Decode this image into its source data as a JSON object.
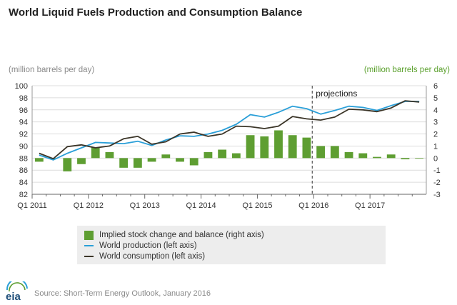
{
  "header": {
    "title": "World Liquid Fuels Production and Consumption Balance",
    "left_unit": "(million barrels per day)",
    "right_unit": "(million barrels per day)"
  },
  "colors": {
    "production": "#2a9fd8",
    "consumption": "#3b3528",
    "bars": "#5e9e32",
    "unit_right": "#5aa02c"
  },
  "chart_data": {
    "type": "bar",
    "title": "World Liquid Fuels Production and Consumption Balance",
    "x_tick_labels": [
      "Q1 2011",
      "Q1 2012",
      "Q1 2013",
      "Q1 2014",
      "Q1 2015",
      "Q1 2016",
      "Q1 2017"
    ],
    "x_quarters": [
      "Q1 2011",
      "Q2 2011",
      "Q3 2011",
      "Q4 2011",
      "Q1 2012",
      "Q2 2012",
      "Q3 2012",
      "Q4 2012",
      "Q1 2013",
      "Q2 2013",
      "Q3 2013",
      "Q4 2013",
      "Q1 2014",
      "Q2 2014",
      "Q3 2014",
      "Q4 2014",
      "Q1 2015",
      "Q2 2015",
      "Q3 2015",
      "Q4 2015",
      "Q1 2016",
      "Q2 2016",
      "Q3 2016",
      "Q4 2016",
      "Q1 2017",
      "Q2 2017",
      "Q3 2017",
      "Q4 2017"
    ],
    "left_axis": {
      "label": "(million barrels per day)",
      "range": [
        82,
        100
      ],
      "ticks": [
        82,
        84,
        86,
        88,
        90,
        92,
        94,
        96,
        98,
        100
      ]
    },
    "right_axis": {
      "label": "(million barrels per day)",
      "range": [
        -3,
        6
      ],
      "ticks": [
        -3,
        -2,
        -1,
        0,
        1,
        2,
        3,
        4,
        5,
        6
      ]
    },
    "grid": true,
    "projection_start": "Q1 2016",
    "projection_label": "projections",
    "series": [
      {
        "name": "Implied stock change and balance (right axis)",
        "type": "bar",
        "axis": "right",
        "values": [
          -0.3,
          0.0,
          -1.1,
          -0.5,
          0.9,
          0.5,
          -0.8,
          -0.8,
          -0.3,
          0.3,
          -0.3,
          -0.6,
          0.5,
          0.7,
          0.4,
          1.9,
          1.8,
          2.3,
          1.9,
          1.7,
          1.0,
          1.0,
          0.5,
          0.4,
          0.1,
          0.3,
          -0.1,
          0.0
        ]
      },
      {
        "name": "World production (left axis)",
        "type": "line",
        "axis": "left",
        "values": [
          88.5,
          87.7,
          88.8,
          89.7,
          90.6,
          90.5,
          90.4,
          90.8,
          90.1,
          91.0,
          91.7,
          91.6,
          92.0,
          92.6,
          93.6,
          95.2,
          94.8,
          95.6,
          96.6,
          96.2,
          95.3,
          95.9,
          96.6,
          96.4,
          95.9,
          96.7,
          97.4,
          97.4
        ]
      },
      {
        "name": "World consumption (left axis)",
        "type": "line",
        "axis": "left",
        "values": [
          88.8,
          87.9,
          89.9,
          90.2,
          89.7,
          90.0,
          91.2,
          91.6,
          90.3,
          90.7,
          92.0,
          92.3,
          91.6,
          92.0,
          93.3,
          93.2,
          92.9,
          93.3,
          94.9,
          94.5,
          94.3,
          94.8,
          96.1,
          96.0,
          95.7,
          96.3,
          97.5,
          97.3
        ]
      }
    ],
    "legend_position": "bottom"
  },
  "legend": {
    "items": [
      {
        "label": "Implied stock change and balance (right axis)"
      },
      {
        "label": "World production (left axis)"
      },
      {
        "label": "World consumption (left axis)"
      }
    ]
  },
  "footer": {
    "source": "Source: Short-Term Energy Outlook, January 2016",
    "logo_text": "eia"
  }
}
